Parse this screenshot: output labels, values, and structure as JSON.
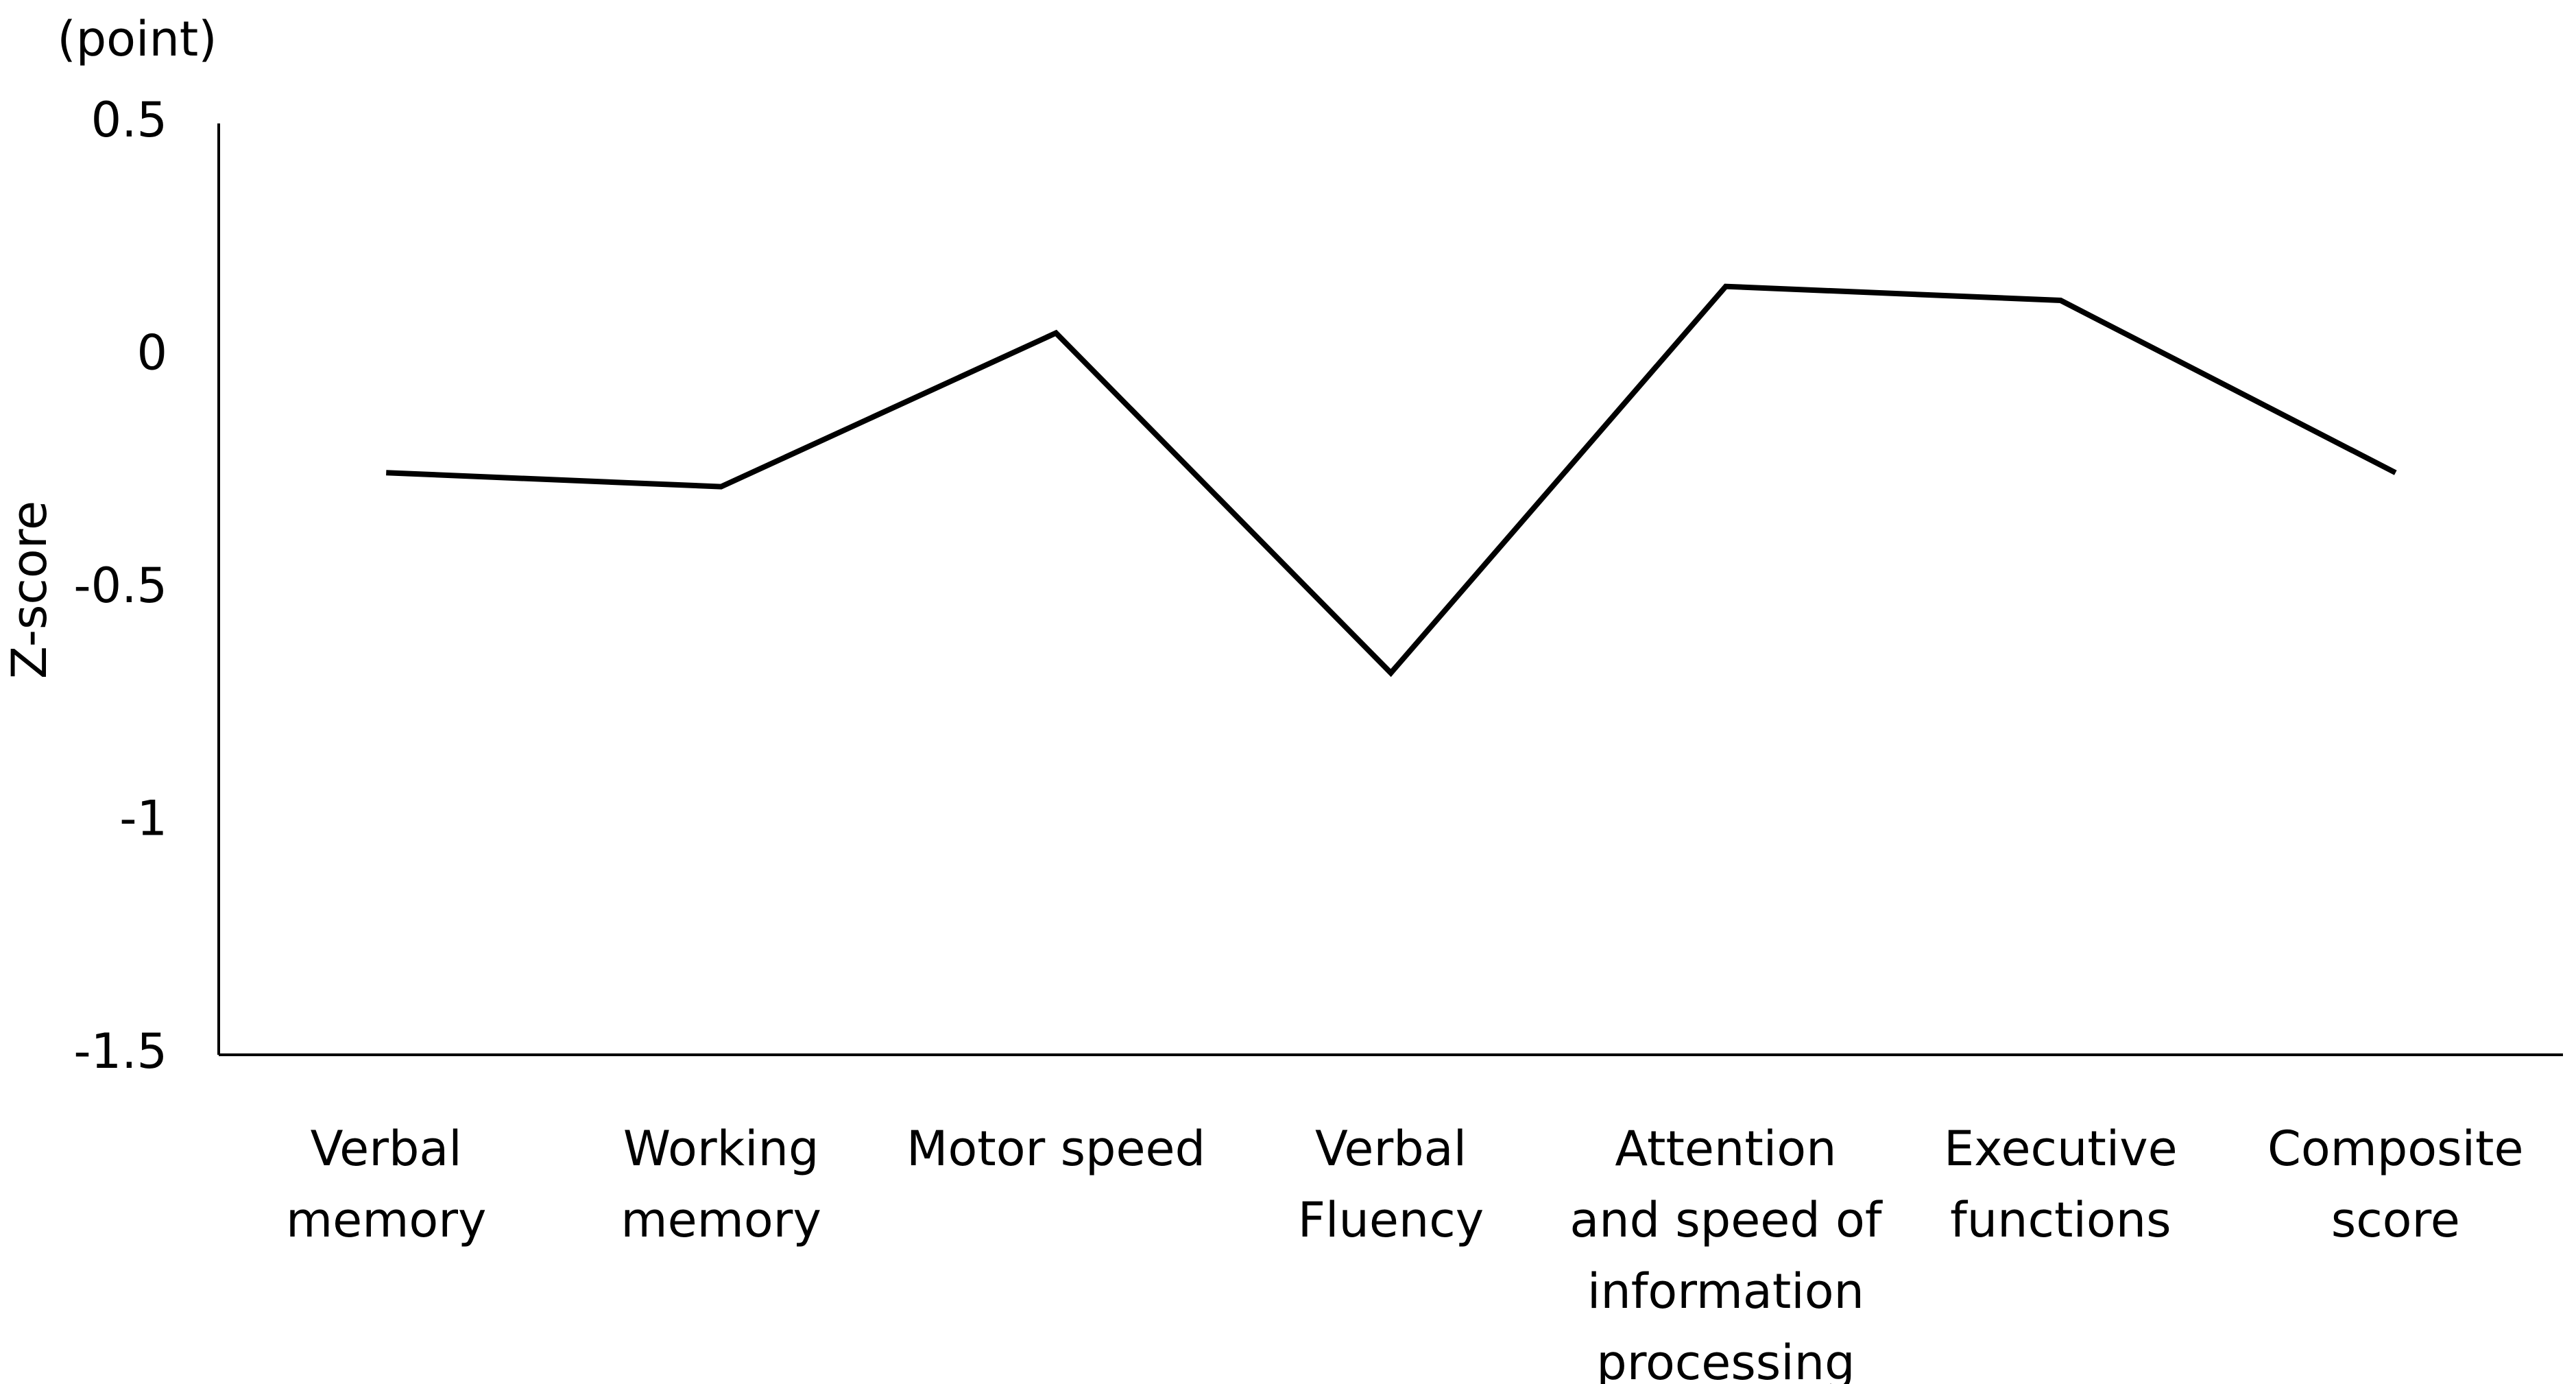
{
  "chart_data": {
    "type": "line",
    "y_unit": "(point)",
    "ylabel": "Z-score",
    "categories": [
      "Verbal memory",
      "Working memory",
      "Motor speed",
      "Verbal Fluency",
      "Attention and speed of information processing",
      "Executive functions",
      "Composite score"
    ],
    "values": [
      -0.25,
      -0.28,
      0.05,
      -0.68,
      0.15,
      0.12,
      -0.25
    ],
    "color": "#000000",
    "ylim": [
      -1.5,
      0.5
    ],
    "yticks": [
      -1.5,
      -1,
      -0.5,
      0,
      0.5
    ],
    "grid": false
  }
}
